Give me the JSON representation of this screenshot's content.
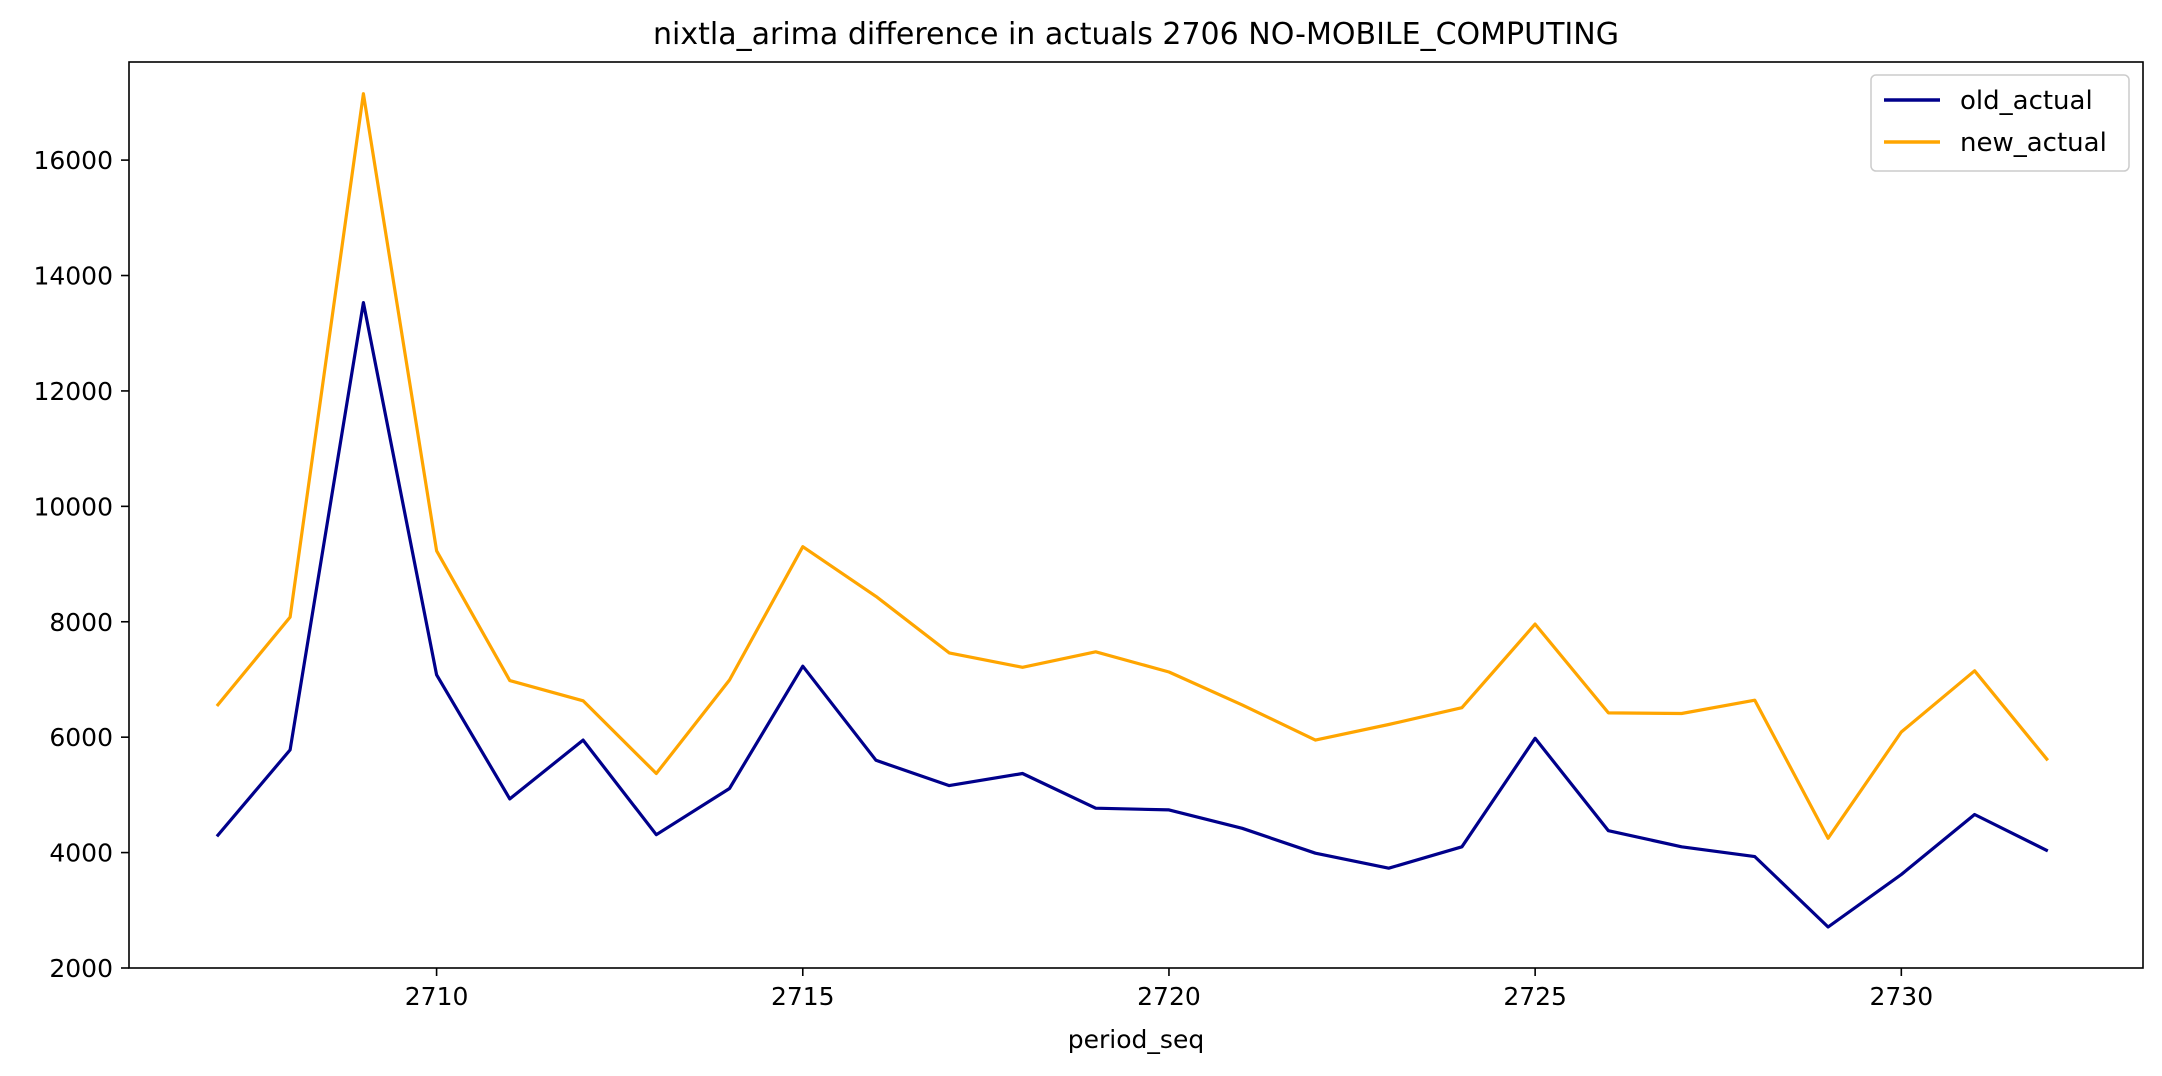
{
  "chart_data": {
    "type": "line",
    "title": "nixtla_arima difference in actuals 2706 NO-MOBILE_COMPUTING",
    "xlabel": "period_seq",
    "ylabel": "",
    "x": [
      2707,
      2708,
      2709,
      2710,
      2711,
      2712,
      2713,
      2714,
      2715,
      2716,
      2717,
      2718,
      2719,
      2720,
      2721,
      2722,
      2723,
      2724,
      2725,
      2726,
      2727,
      2728,
      2729,
      2730,
      2731,
      2732
    ],
    "xlim": [
      2705.8,
      2733.3
    ],
    "ylim": [
      2000,
      17700
    ],
    "xticks": [
      "2710",
      "2715",
      "2720",
      "2725",
      "2730"
    ],
    "yticks": [
      "2000",
      "4000",
      "6000",
      "8000",
      "10000",
      "12000",
      "14000",
      "16000"
    ],
    "grid": false,
    "legend_position": "top-right",
    "series": [
      {
        "name": "old_actual",
        "color": "#00008b",
        "values": [
          4280,
          5780,
          13530,
          7080,
          4930,
          5950,
          4310,
          5110,
          7230,
          5600,
          5160,
          5370,
          4770,
          4740,
          4420,
          3990,
          3730,
          4100,
          5980,
          4380,
          4100,
          3930,
          2710,
          3620,
          4660,
          4030
        ]
      },
      {
        "name": "new_actual",
        "color": "#ffa500",
        "values": [
          6540,
          8080,
          17150,
          9230,
          6980,
          6630,
          5370,
          6990,
          9300,
          8440,
          7460,
          7210,
          7480,
          7130,
          6560,
          5950,
          6220,
          6510,
          7960,
          6420,
          6410,
          6640,
          4250,
          6090,
          7150,
          5600
        ]
      }
    ]
  }
}
